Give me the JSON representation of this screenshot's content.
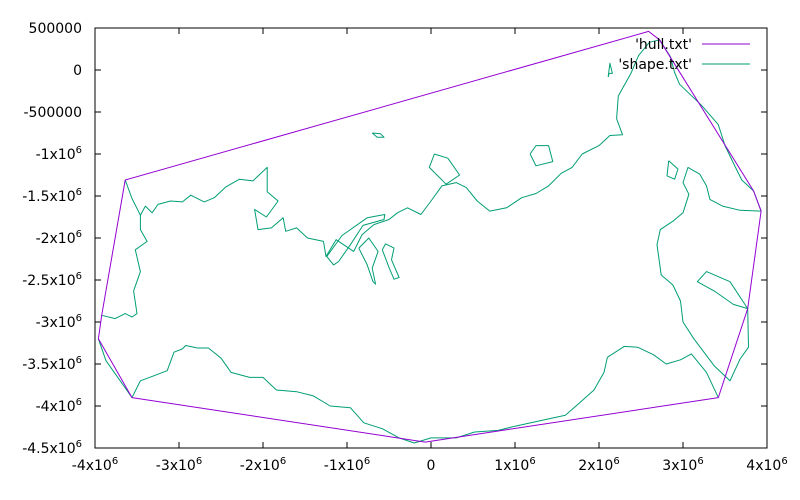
{
  "chart_data": {
    "type": "line",
    "title": "",
    "xlabel": "",
    "ylabel": "",
    "xlim": [
      -4000000,
      4000000
    ],
    "ylim": [
      -4500000,
      500000
    ],
    "grid": false,
    "legend_position": "top-right",
    "x_ticks": [
      {
        "value": -4000000,
        "base": "-4x10",
        "exp": "6"
      },
      {
        "value": -3000000,
        "base": "-3x10",
        "exp": "6"
      },
      {
        "value": -2000000,
        "base": "-2x10",
        "exp": "6"
      },
      {
        "value": -1000000,
        "base": "-1x10",
        "exp": "6"
      },
      {
        "value": 0,
        "base": "0",
        "exp": ""
      },
      {
        "value": 1000000,
        "base": "1x10",
        "exp": "6"
      },
      {
        "value": 2000000,
        "base": "2x10",
        "exp": "6"
      },
      {
        "value": 3000000,
        "base": "3x10",
        "exp": "6"
      },
      {
        "value": 4000000,
        "base": "4x10",
        "exp": "6"
      }
    ],
    "y_ticks": [
      {
        "value": 500000,
        "base": "500000",
        "exp": ""
      },
      {
        "value": 0,
        "base": "0",
        "exp": ""
      },
      {
        "value": -500000,
        "base": "-500000",
        "exp": ""
      },
      {
        "value": -1000000,
        "base": "-1x10",
        "exp": "6"
      },
      {
        "value": -1500000,
        "base": "-1.5x10",
        "exp": "6"
      },
      {
        "value": -2000000,
        "base": "-2x10",
        "exp": "6"
      },
      {
        "value": -2500000,
        "base": "-2.5x10",
        "exp": "6"
      },
      {
        "value": -3000000,
        "base": "-3x10",
        "exp": "6"
      },
      {
        "value": -3500000,
        "base": "-3.5x10",
        "exp": "6"
      },
      {
        "value": -4000000,
        "base": "-4x10",
        "exp": "6"
      },
      {
        "value": -4500000,
        "base": "-4.5x10",
        "exp": "6"
      }
    ],
    "series": [
      {
        "name": "'hull.txt'",
        "color": "#9400d3",
        "paths": [
          [
            [
              -3640000,
              -1310000
            ],
            [
              2590000,
              460000
            ],
            [
              2720000,
              360000
            ],
            [
              3840000,
              -1440000
            ],
            [
              3930000,
              -1680000
            ],
            [
              3770000,
              -2840000
            ],
            [
              3420000,
              -3900000
            ],
            [
              -70000,
              -4430000
            ],
            [
              -3560000,
              -3900000
            ],
            [
              -3960000,
              -3200000
            ],
            [
              -3920000,
              -2920000
            ],
            [
              -3640000,
              -1310000
            ]
          ]
        ]
      },
      {
        "name": "'shape.txt'",
        "color": "#009e73",
        "paths": [
          [
            [
              -3640000,
              -1310000
            ],
            [
              -3560000,
              -1530000
            ],
            [
              -3460000,
              -1730000
            ],
            [
              -3400000,
              -1620000
            ],
            [
              -3320000,
              -1700000
            ],
            [
              -3250000,
              -1600000
            ],
            [
              -3100000,
              -1560000
            ],
            [
              -2960000,
              -1570000
            ],
            [
              -2860000,
              -1490000
            ],
            [
              -2700000,
              -1570000
            ],
            [
              -2580000,
              -1520000
            ],
            [
              -2440000,
              -1390000
            ],
            [
              -2280000,
              -1300000
            ],
            [
              -2120000,
              -1320000
            ],
            [
              -1950000,
              -1160000
            ],
            [
              -1950000,
              -1450000
            ],
            [
              -1820000,
              -1560000
            ],
            [
              -1960000,
              -1750000
            ],
            [
              -2100000,
              -1660000
            ],
            [
              -2060000,
              -1900000
            ],
            [
              -1900000,
              -1880000
            ],
            [
              -1760000,
              -1760000
            ],
            [
              -1730000,
              -1920000
            ],
            [
              -1600000,
              -1880000
            ],
            [
              -1470000,
              -2000000
            ],
            [
              -1280000,
              -2040000
            ],
            [
              -1250000,
              -2220000
            ],
            [
              -1130000,
              -2020000
            ],
            [
              -920000,
              -2160000
            ],
            [
              -820000,
              -1960000
            ],
            [
              -680000,
              -1840000
            ],
            [
              -500000,
              -1780000
            ],
            [
              -400000,
              -1700000
            ],
            [
              -280000,
              -1640000
            ],
            [
              -120000,
              -1720000
            ],
            [
              0,
              -1560000
            ],
            [
              130000,
              -1380000
            ],
            [
              300000,
              -1340000
            ],
            [
              420000,
              -1400000
            ],
            [
              550000,
              -1560000
            ],
            [
              700000,
              -1680000
            ],
            [
              900000,
              -1640000
            ],
            [
              1080000,
              -1520000
            ],
            [
              1250000,
              -1470000
            ],
            [
              1400000,
              -1380000
            ],
            [
              1550000,
              -1230000
            ],
            [
              1680000,
              -1160000
            ],
            [
              1800000,
              -1000000
            ],
            [
              2000000,
              -900000
            ],
            [
              2130000,
              -780000
            ],
            [
              2280000,
              -770000
            ],
            [
              2210000,
              -580000
            ],
            [
              2230000,
              -310000
            ],
            [
              2380000,
              -40000
            ],
            [
              2470000,
              170000
            ],
            [
              2600000,
              330000
            ],
            [
              2720000,
              360000
            ],
            [
              2850000,
              160000
            ],
            [
              2900000,
              -30000
            ],
            [
              2960000,
              -170000
            ],
            [
              3220000,
              -420000
            ],
            [
              3420000,
              -650000
            ],
            [
              3500000,
              -900000
            ],
            [
              3620000,
              -1150000
            ],
            [
              3700000,
              -1310000
            ],
            [
              3840000,
              -1440000
            ],
            [
              3930000,
              -1680000
            ]
          ],
          [
            [
              -3920000,
              -2920000
            ],
            [
              -3760000,
              -2960000
            ],
            [
              -3640000,
              -2900000
            ],
            [
              -3560000,
              -2940000
            ],
            [
              -3500000,
              -2900000
            ],
            [
              -3540000,
              -2630000
            ],
            [
              -3460000,
              -2400000
            ],
            [
              -3520000,
              -2140000
            ],
            [
              -3380000,
              -2040000
            ],
            [
              -3460000,
              -1900000
            ],
            [
              -3460000,
              -1730000
            ]
          ],
          [
            [
              -3960000,
              -3200000
            ],
            [
              -3870000,
              -3460000
            ],
            [
              -3700000,
              -3700000
            ],
            [
              -3560000,
              -3900000
            ],
            [
              -3460000,
              -3700000
            ],
            [
              -3300000,
              -3640000
            ],
            [
              -3140000,
              -3580000
            ],
            [
              -3060000,
              -3360000
            ],
            [
              -2960000,
              -3320000
            ],
            [
              -2920000,
              -3280000
            ],
            [
              -2780000,
              -3310000
            ],
            [
              -2650000,
              -3310000
            ],
            [
              -2500000,
              -3430000
            ],
            [
              -2380000,
              -3600000
            ],
            [
              -2160000,
              -3660000
            ],
            [
              -2000000,
              -3660000
            ],
            [
              -1840000,
              -3810000
            ],
            [
              -1600000,
              -3830000
            ],
            [
              -1400000,
              -3880000
            ],
            [
              -1200000,
              -4000000
            ],
            [
              -960000,
              -4020000
            ],
            [
              -800000,
              -4200000
            ],
            [
              -580000,
              -4270000
            ],
            [
              -380000,
              -4380000
            ],
            [
              -200000,
              -4440000
            ],
            [
              0,
              -4380000
            ],
            [
              300000,
              -4380000
            ],
            [
              520000,
              -4310000
            ],
            [
              800000,
              -4290000
            ],
            [
              1000000,
              -4240000
            ],
            [
              1230000,
              -4190000
            ],
            [
              1600000,
              -4110000
            ],
            [
              1750000,
              -3980000
            ],
            [
              1940000,
              -3810000
            ],
            [
              2060000,
              -3600000
            ],
            [
              2100000,
              -3420000
            ],
            [
              2300000,
              -3290000
            ],
            [
              2460000,
              -3300000
            ],
            [
              2650000,
              -3390000
            ],
            [
              2800000,
              -3500000
            ],
            [
              2970000,
              -3450000
            ],
            [
              3100000,
              -3380000
            ],
            [
              3280000,
              -3600000
            ],
            [
              3420000,
              -3900000
            ]
          ],
          [
            [
              3930000,
              -1680000
            ],
            [
              3680000,
              -1670000
            ],
            [
              3470000,
              -1620000
            ],
            [
              3320000,
              -1540000
            ],
            [
              3280000,
              -1380000
            ],
            [
              3200000,
              -1240000
            ],
            [
              3060000,
              -1160000
            ],
            [
              3000000,
              -1340000
            ],
            [
              3070000,
              -1480000
            ],
            [
              3000000,
              -1700000
            ],
            [
              2880000,
              -1800000
            ],
            [
              2730000,
              -1900000
            ],
            [
              2690000,
              -2080000
            ],
            [
              2740000,
              -2440000
            ],
            [
              2880000,
              -2560000
            ],
            [
              2970000,
              -2750000
            ],
            [
              3000000,
              -3000000
            ],
            [
              3130000,
              -3200000
            ],
            [
              3370000,
              -3520000
            ],
            [
              3560000,
              -3700000
            ],
            [
              3680000,
              -3440000
            ],
            [
              3780000,
              -3300000
            ],
            [
              3770000,
              -2840000
            ],
            [
              3600000,
              -2790000
            ],
            [
              3370000,
              -2630000
            ],
            [
              3170000,
              -2520000
            ],
            [
              3280000,
              -2400000
            ],
            [
              3560000,
              -2520000
            ],
            [
              3770000,
              -2840000
            ]
          ],
          [
            [
              -1240000,
              -2220000
            ],
            [
              -1060000,
              -1970000
            ],
            [
              -760000,
              -1760000
            ],
            [
              -550000,
              -1720000
            ],
            [
              -560000,
              -1780000
            ],
            [
              -810000,
              -1850000
            ],
            [
              -960000,
              -2080000
            ],
            [
              -1100000,
              -2280000
            ],
            [
              -1160000,
              -2320000
            ],
            [
              -1240000,
              -2220000
            ]
          ],
          [
            [
              -860000,
              -2120000
            ],
            [
              -760000,
              -2320000
            ],
            [
              -690000,
              -2520000
            ],
            [
              -660000,
              -2550000
            ],
            [
              -700000,
              -2360000
            ],
            [
              -630000,
              -2160000
            ],
            [
              -740000,
              -2000000
            ],
            [
              -860000,
              -2120000
            ]
          ],
          [
            [
              -580000,
              -2140000
            ],
            [
              -500000,
              -2350000
            ],
            [
              -440000,
              -2490000
            ],
            [
              -380000,
              -2470000
            ],
            [
              -470000,
              -2260000
            ],
            [
              -440000,
              -2120000
            ],
            [
              -540000,
              -2070000
            ],
            [
              -580000,
              -2140000
            ]
          ],
          [
            [
              40000,
              -1000000
            ],
            [
              -20000,
              -1160000
            ],
            [
              180000,
              -1360000
            ],
            [
              340000,
              -1250000
            ],
            [
              200000,
              -1050000
            ],
            [
              40000,
              -1000000
            ]
          ],
          [
            [
              1180000,
              -1000000
            ],
            [
              1250000,
              -1140000
            ],
            [
              1450000,
              -1090000
            ],
            [
              1400000,
              -900000
            ],
            [
              1250000,
              -900000
            ],
            [
              1180000,
              -1000000
            ]
          ],
          [
            [
              -700000,
              -750000
            ],
            [
              -640000,
              -800000
            ],
            [
              -560000,
              -800000
            ],
            [
              -600000,
              -760000
            ],
            [
              -700000,
              -750000
            ]
          ],
          [
            [
              2120000,
              -40000
            ],
            [
              2110000,
              -80000
            ],
            [
              2130000,
              80000
            ],
            [
              2160000,
              -40000
            ],
            [
              2120000,
              -40000
            ]
          ],
          [
            [
              2830000,
              -1080000
            ],
            [
              2940000,
              -1180000
            ],
            [
              2900000,
              -1300000
            ],
            [
              2810000,
              -1260000
            ],
            [
              2830000,
              -1080000
            ]
          ]
        ]
      }
    ]
  }
}
